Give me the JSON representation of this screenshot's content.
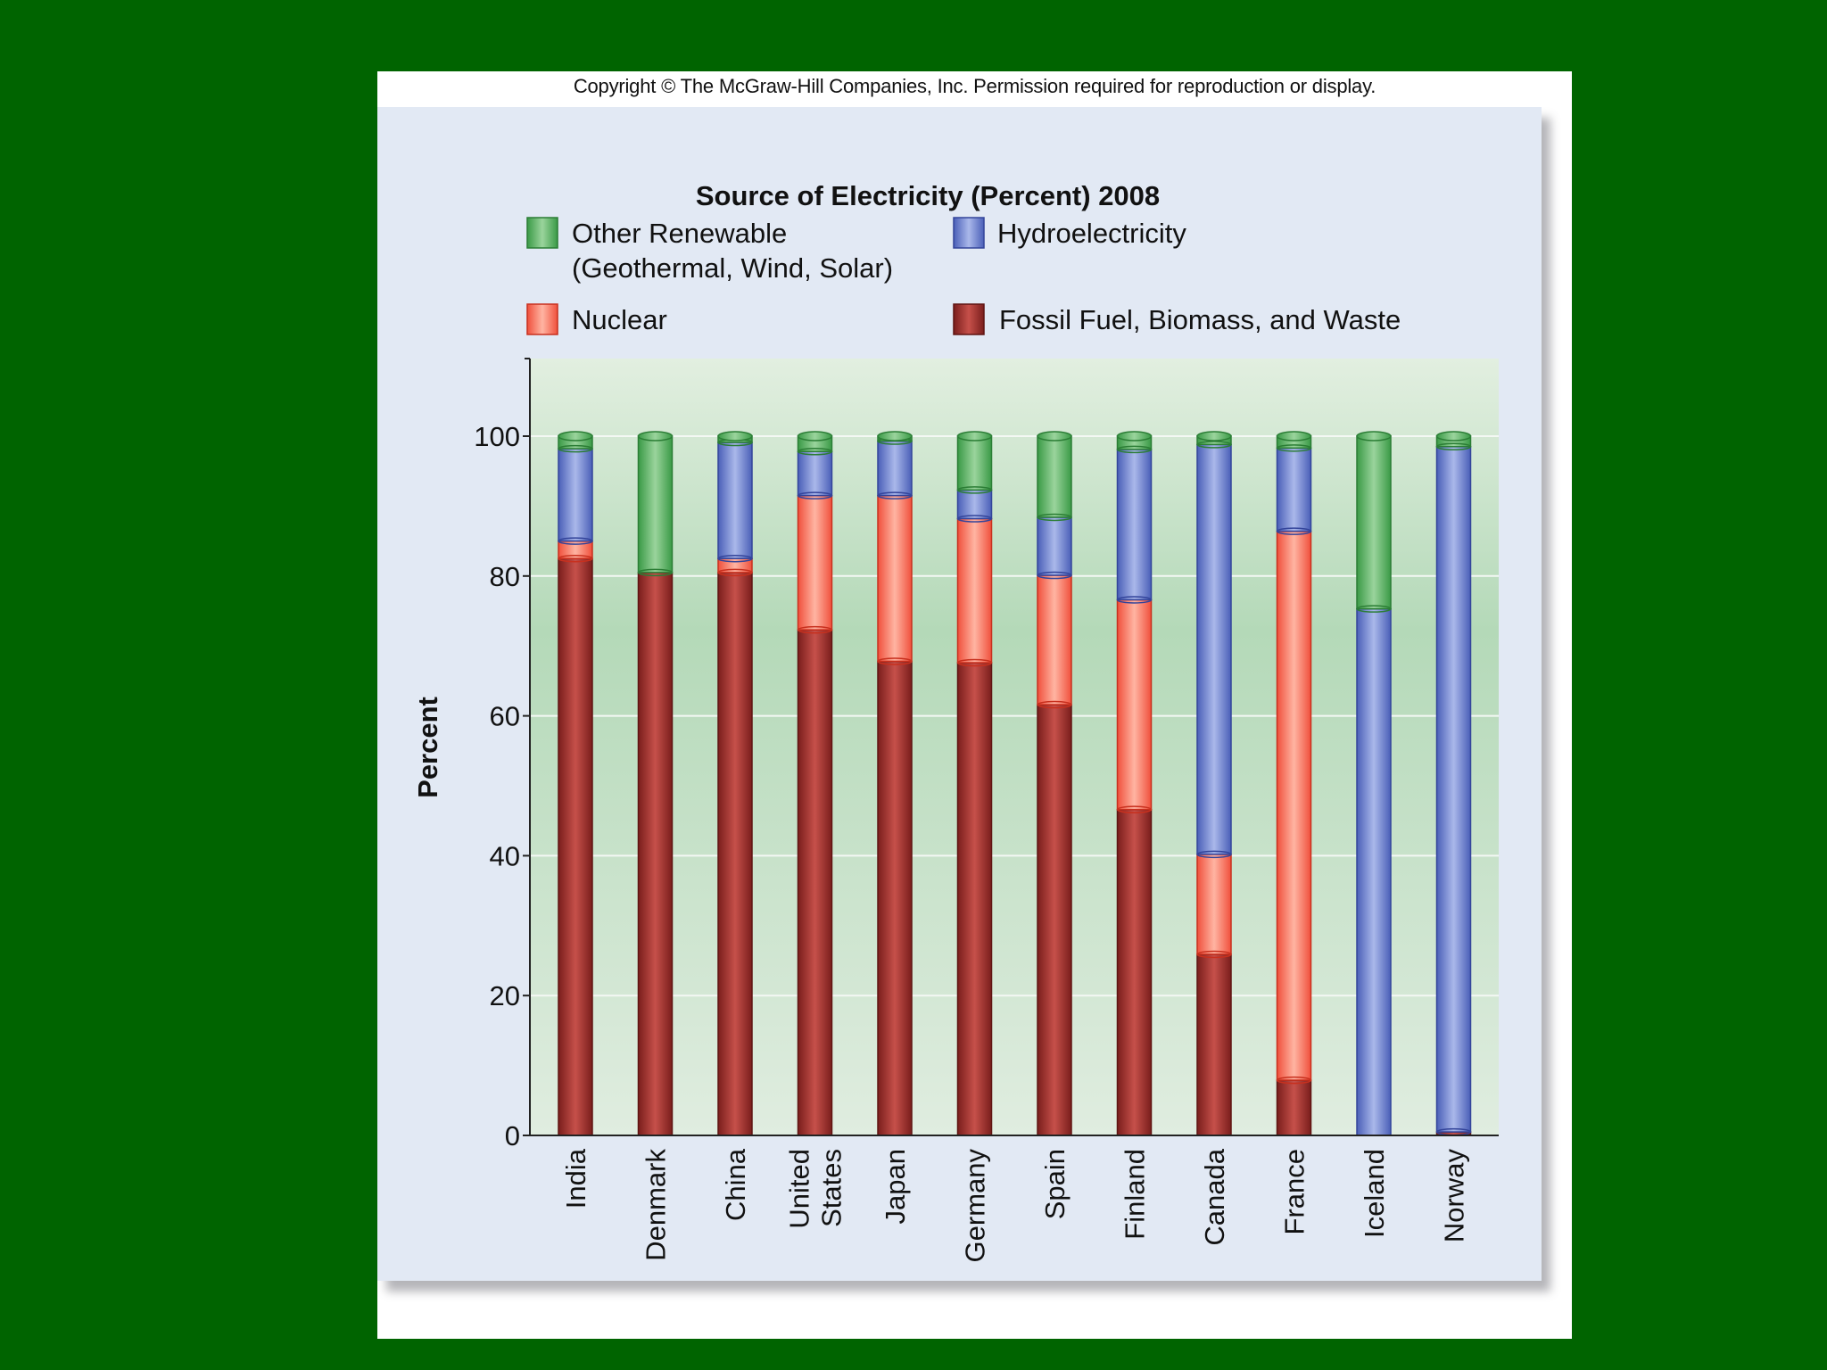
{
  "copyright": "Copyright © The McGraw-Hill Companies, Inc. Permission required for reproduction or display.",
  "chart_data": {
    "type": "bar",
    "stacked": true,
    "title": "Source of Electricity (Percent) 2008",
    "xlabel": "",
    "ylabel": "Percent",
    "ylim": [
      0,
      110
    ],
    "yticks": [
      0,
      20,
      40,
      60,
      80,
      100
    ],
    "grid": true,
    "legend": {
      "position": "top",
      "entries": [
        {
          "key": "renewable",
          "lines": [
            "Other Renewable",
            "(Geothermal, Wind, Solar)"
          ],
          "color": "#4caf50"
        },
        {
          "key": "hydro",
          "lines": [
            "Hydroelectricity"
          ],
          "color": "#5b72c9"
        },
        {
          "key": "nuclear",
          "lines": [
            "Nuclear"
          ],
          "color": "#f2705a"
        },
        {
          "key": "fossil",
          "lines": [
            "Fossil Fuel, Biomass, and Waste"
          ],
          "color": "#a8322c"
        }
      ]
    },
    "categories": [
      [
        "India"
      ],
      [
        "Denmark"
      ],
      [
        "China"
      ],
      [
        "United",
        "States"
      ],
      [
        "Japan"
      ],
      [
        "Germany"
      ],
      [
        "Spain"
      ],
      [
        "Finland"
      ],
      [
        "Canada"
      ],
      [
        "France"
      ],
      [
        "Iceland"
      ],
      [
        "Norway"
      ]
    ],
    "series": [
      {
        "name": "Fossil Fuel, Biomass, and Waste",
        "key": "fossil",
        "values": [
          82.5,
          80.5,
          80.5,
          72.3,
          67.8,
          67.6,
          61.6,
          46.6,
          25.9,
          7.9,
          0,
          0.5
        ]
      },
      {
        "name": "Nuclear",
        "key": "nuclear",
        "values": [
          2.5,
          0,
          2.0,
          19.2,
          23.7,
          20.6,
          18.5,
          30.0,
          14.3,
          78.5,
          0,
          0
        ]
      },
      {
        "name": "Hydroelectricity",
        "key": "hydro",
        "values": [
          13.2,
          0,
          16.6,
          6.3,
          7.8,
          4.1,
          8.3,
          21.5,
          58.6,
          11.9,
          75.3,
          98.0
        ]
      },
      {
        "name": "Other Renewable (Geothermal, Wind, Solar)",
        "key": "renewable",
        "values": [
          1.8,
          19.5,
          0.9,
          2.2,
          0.7,
          7.7,
          11.6,
          1.9,
          1.2,
          1.7,
          24.7,
          1.5
        ]
      }
    ]
  }
}
